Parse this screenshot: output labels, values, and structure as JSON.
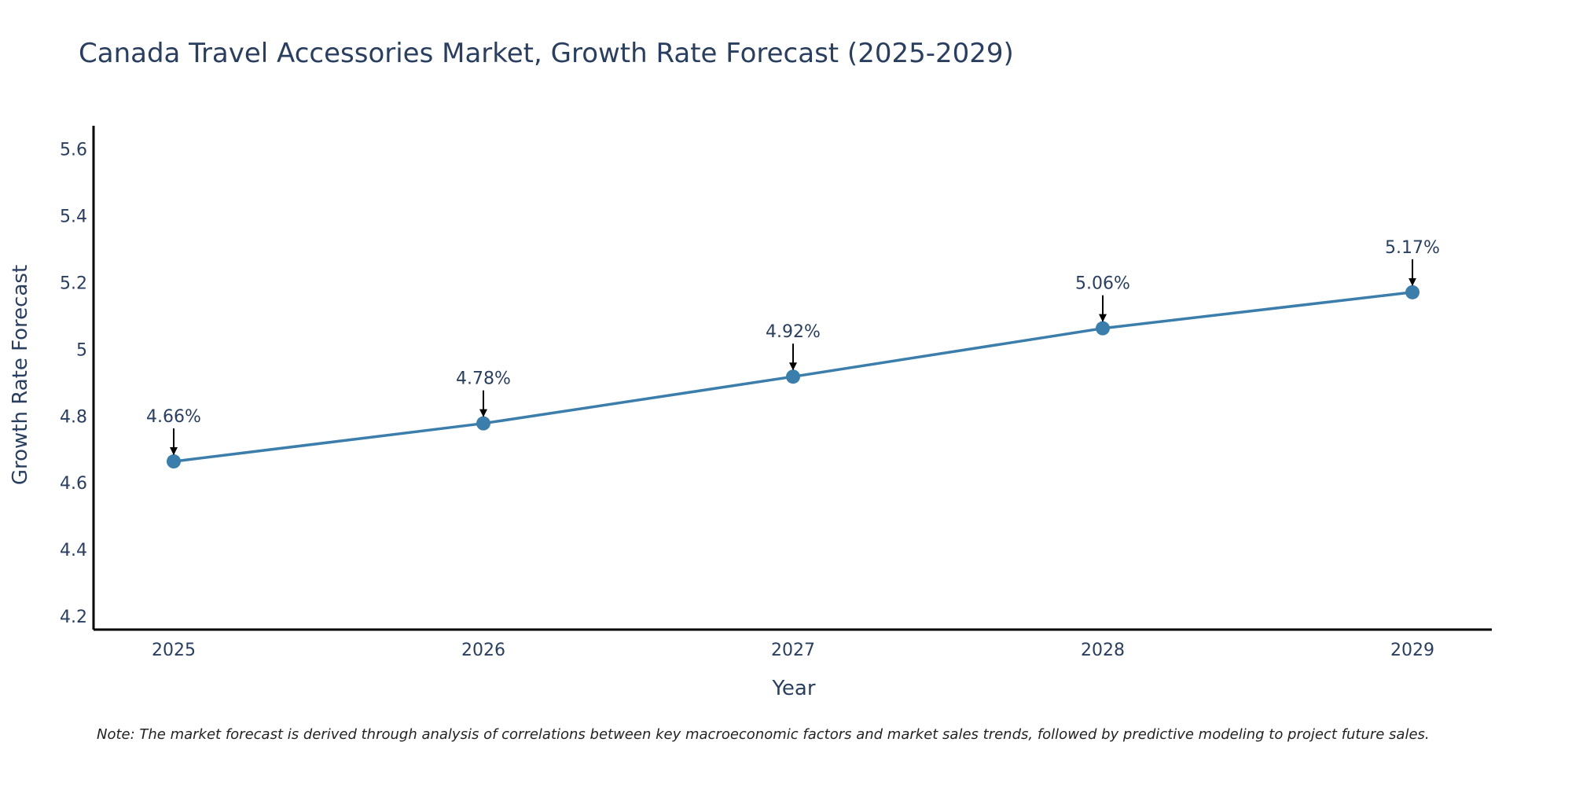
{
  "colors": {
    "line": "#3b7dab",
    "marker": "#3b7dab",
    "axis": "#000000",
    "text": "#2a3f5f",
    "arrow": "#000000"
  },
  "chart_data": {
    "type": "line",
    "title": "Canada Travel Accessories Market, Growth Rate Forecast (2025-2029)",
    "xlabel": "Year",
    "ylabel": "Growth Rate Forecast",
    "categories": [
      "2025",
      "2026",
      "2027",
      "2028",
      "2029"
    ],
    "series": [
      {
        "name": "Growth Rate Forecast",
        "values": [
          4.664,
          4.778,
          4.918,
          5.063,
          5.171
        ]
      }
    ],
    "data_labels": [
      "4.66%",
      "4.78%",
      "4.92%",
      "5.06%",
      "5.17%"
    ],
    "yticks": [
      4.2,
      4.4,
      4.6,
      4.8,
      5.0,
      5.2,
      5.4,
      5.6
    ],
    "ytick_labels": [
      "4.2",
      "4.4",
      "4.6",
      "4.8",
      "5",
      "5.2",
      "5.4",
      "5.6"
    ],
    "ylim": [
      4.16,
      5.67
    ],
    "grid": false,
    "legend": "none"
  },
  "note": "Note: The market forecast is derived through analysis of correlations between key macroeconomic factors and market sales trends, followed by predictive modeling to project future sales."
}
